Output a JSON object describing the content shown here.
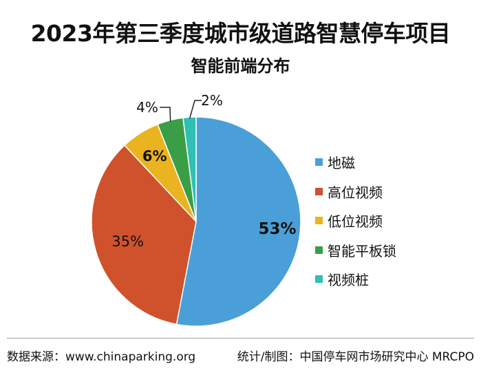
{
  "header": {
    "title": "2023年第三季度城市级道路智慧停车项目",
    "subtitle": "智能前端分布"
  },
  "chart_data": {
    "type": "pie",
    "title": "2023年第三季度城市级道路智慧停车项目",
    "subtitle": "智能前端分布",
    "slices": [
      {
        "label": "地磁",
        "value": 53,
        "value_label": "53%",
        "color": "#4a9fd8"
      },
      {
        "label": "高位视频",
        "value": 35,
        "value_label": "35%",
        "color": "#cf522c"
      },
      {
        "label": "低位视频",
        "value": 6,
        "value_label": "6%",
        "color": "#eab420"
      },
      {
        "label": "智能平板锁",
        "value": 4,
        "value_label": "4%",
        "color": "#3a9e46"
      },
      {
        "label": "视频桩",
        "value": 2,
        "value_label": "2%",
        "color": "#2fbfb5"
      }
    ],
    "legend_position": "right"
  },
  "footer": {
    "source": "数据来源：www.chinaparking.org",
    "credit": "统计/制图：中国停车网市场研究中心 MRCPO"
  }
}
